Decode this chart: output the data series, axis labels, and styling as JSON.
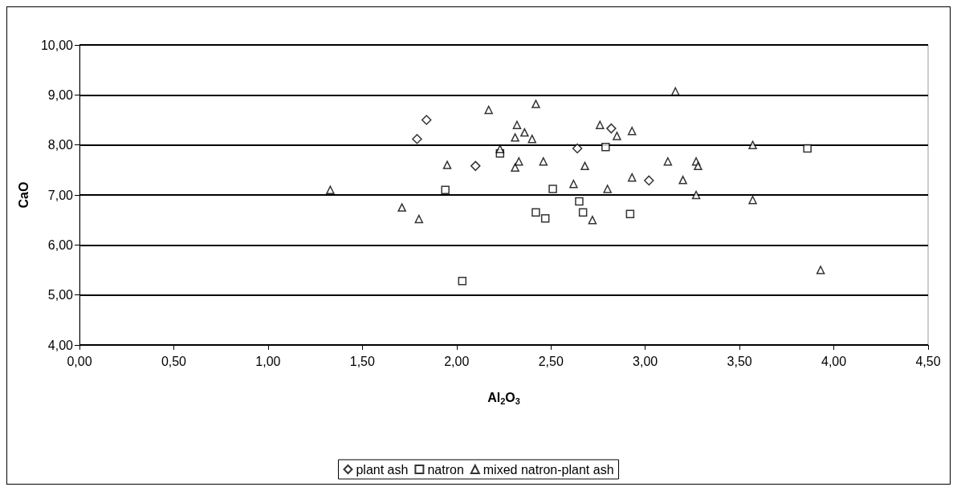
{
  "chart_data": {
    "type": "scatter",
    "xlabel": "Al$_{2}$O$_{3}$",
    "ylabel": "CaO",
    "xlim": [
      0,
      4.5
    ],
    "xticks": [
      {
        "value": 0,
        "label": "0,00"
      },
      {
        "value": 0.5,
        "label": "0,50"
      },
      {
        "value": 1,
        "label": "1,00"
      },
      {
        "value": 1.5,
        "label": "1,50"
      },
      {
        "value": 2,
        "label": "2,00"
      },
      {
        "value": 2.5,
        "label": "2,50"
      },
      {
        "value": 3,
        "label": "3,00"
      },
      {
        "value": 3.5,
        "label": "3,50"
      },
      {
        "value": 4,
        "label": "4,00"
      },
      {
        "value": 4.5,
        "label": "4,50"
      }
    ],
    "ylim": [
      4,
      10
    ],
    "yticks": [
      {
        "value": 4,
        "label": "4,00"
      },
      {
        "value": 5,
        "label": "5,00"
      },
      {
        "value": 6,
        "label": "6,00"
      },
      {
        "value": 7,
        "label": "7,00"
      },
      {
        "value": 8,
        "label": "8,00"
      },
      {
        "value": 9,
        "label": "9,00"
      },
      {
        "value": 10,
        "label": "10,00"
      }
    ],
    "grid": "y",
    "legend": "bottom",
    "series": [
      {
        "name": "plant ash",
        "color": "#000000",
        "marker": "diamond",
        "x": [
          1.79,
          1.84,
          2.1,
          2.64,
          2.82,
          3.02
        ],
        "values": [
          8.12,
          8.5,
          7.58,
          7.93,
          8.33,
          7.29
        ]
      },
      {
        "name": "natron",
        "color": "#000000",
        "marker": "square",
        "x": [
          1.94,
          2.03,
          2.23,
          2.42,
          2.47,
          2.51,
          2.65,
          2.67,
          2.79,
          2.92,
          3.86
        ],
        "values": [
          7.1,
          5.28,
          7.83,
          6.65,
          6.53,
          7.12,
          6.87,
          6.65,
          7.96,
          6.62,
          7.93
        ]
      },
      {
        "name": "mixed natron-plant ash",
        "color": "#000000",
        "marker": "triangle",
        "x": [
          1.33,
          1.71,
          1.8,
          1.95,
          2.17,
          2.23,
          2.31,
          2.31,
          2.32,
          2.33,
          2.36,
          2.4,
          2.42,
          2.46,
          2.62,
          2.68,
          2.72,
          2.76,
          2.8,
          2.85,
          2.93,
          2.93,
          3.12,
          3.16,
          3.2,
          3.27,
          3.27,
          3.28,
          3.57,
          3.57,
          3.93
        ],
        "values": [
          7.1,
          6.75,
          6.52,
          7.6,
          8.7,
          7.92,
          7.55,
          8.15,
          8.4,
          7.67,
          8.25,
          8.12,
          8.82,
          7.67,
          7.22,
          7.58,
          6.5,
          8.4,
          7.12,
          8.18,
          8.28,
          7.35,
          7.67,
          9.07,
          7.3,
          7.0,
          7.67,
          7.58,
          8.0,
          6.9,
          5.5
        ]
      }
    ]
  }
}
